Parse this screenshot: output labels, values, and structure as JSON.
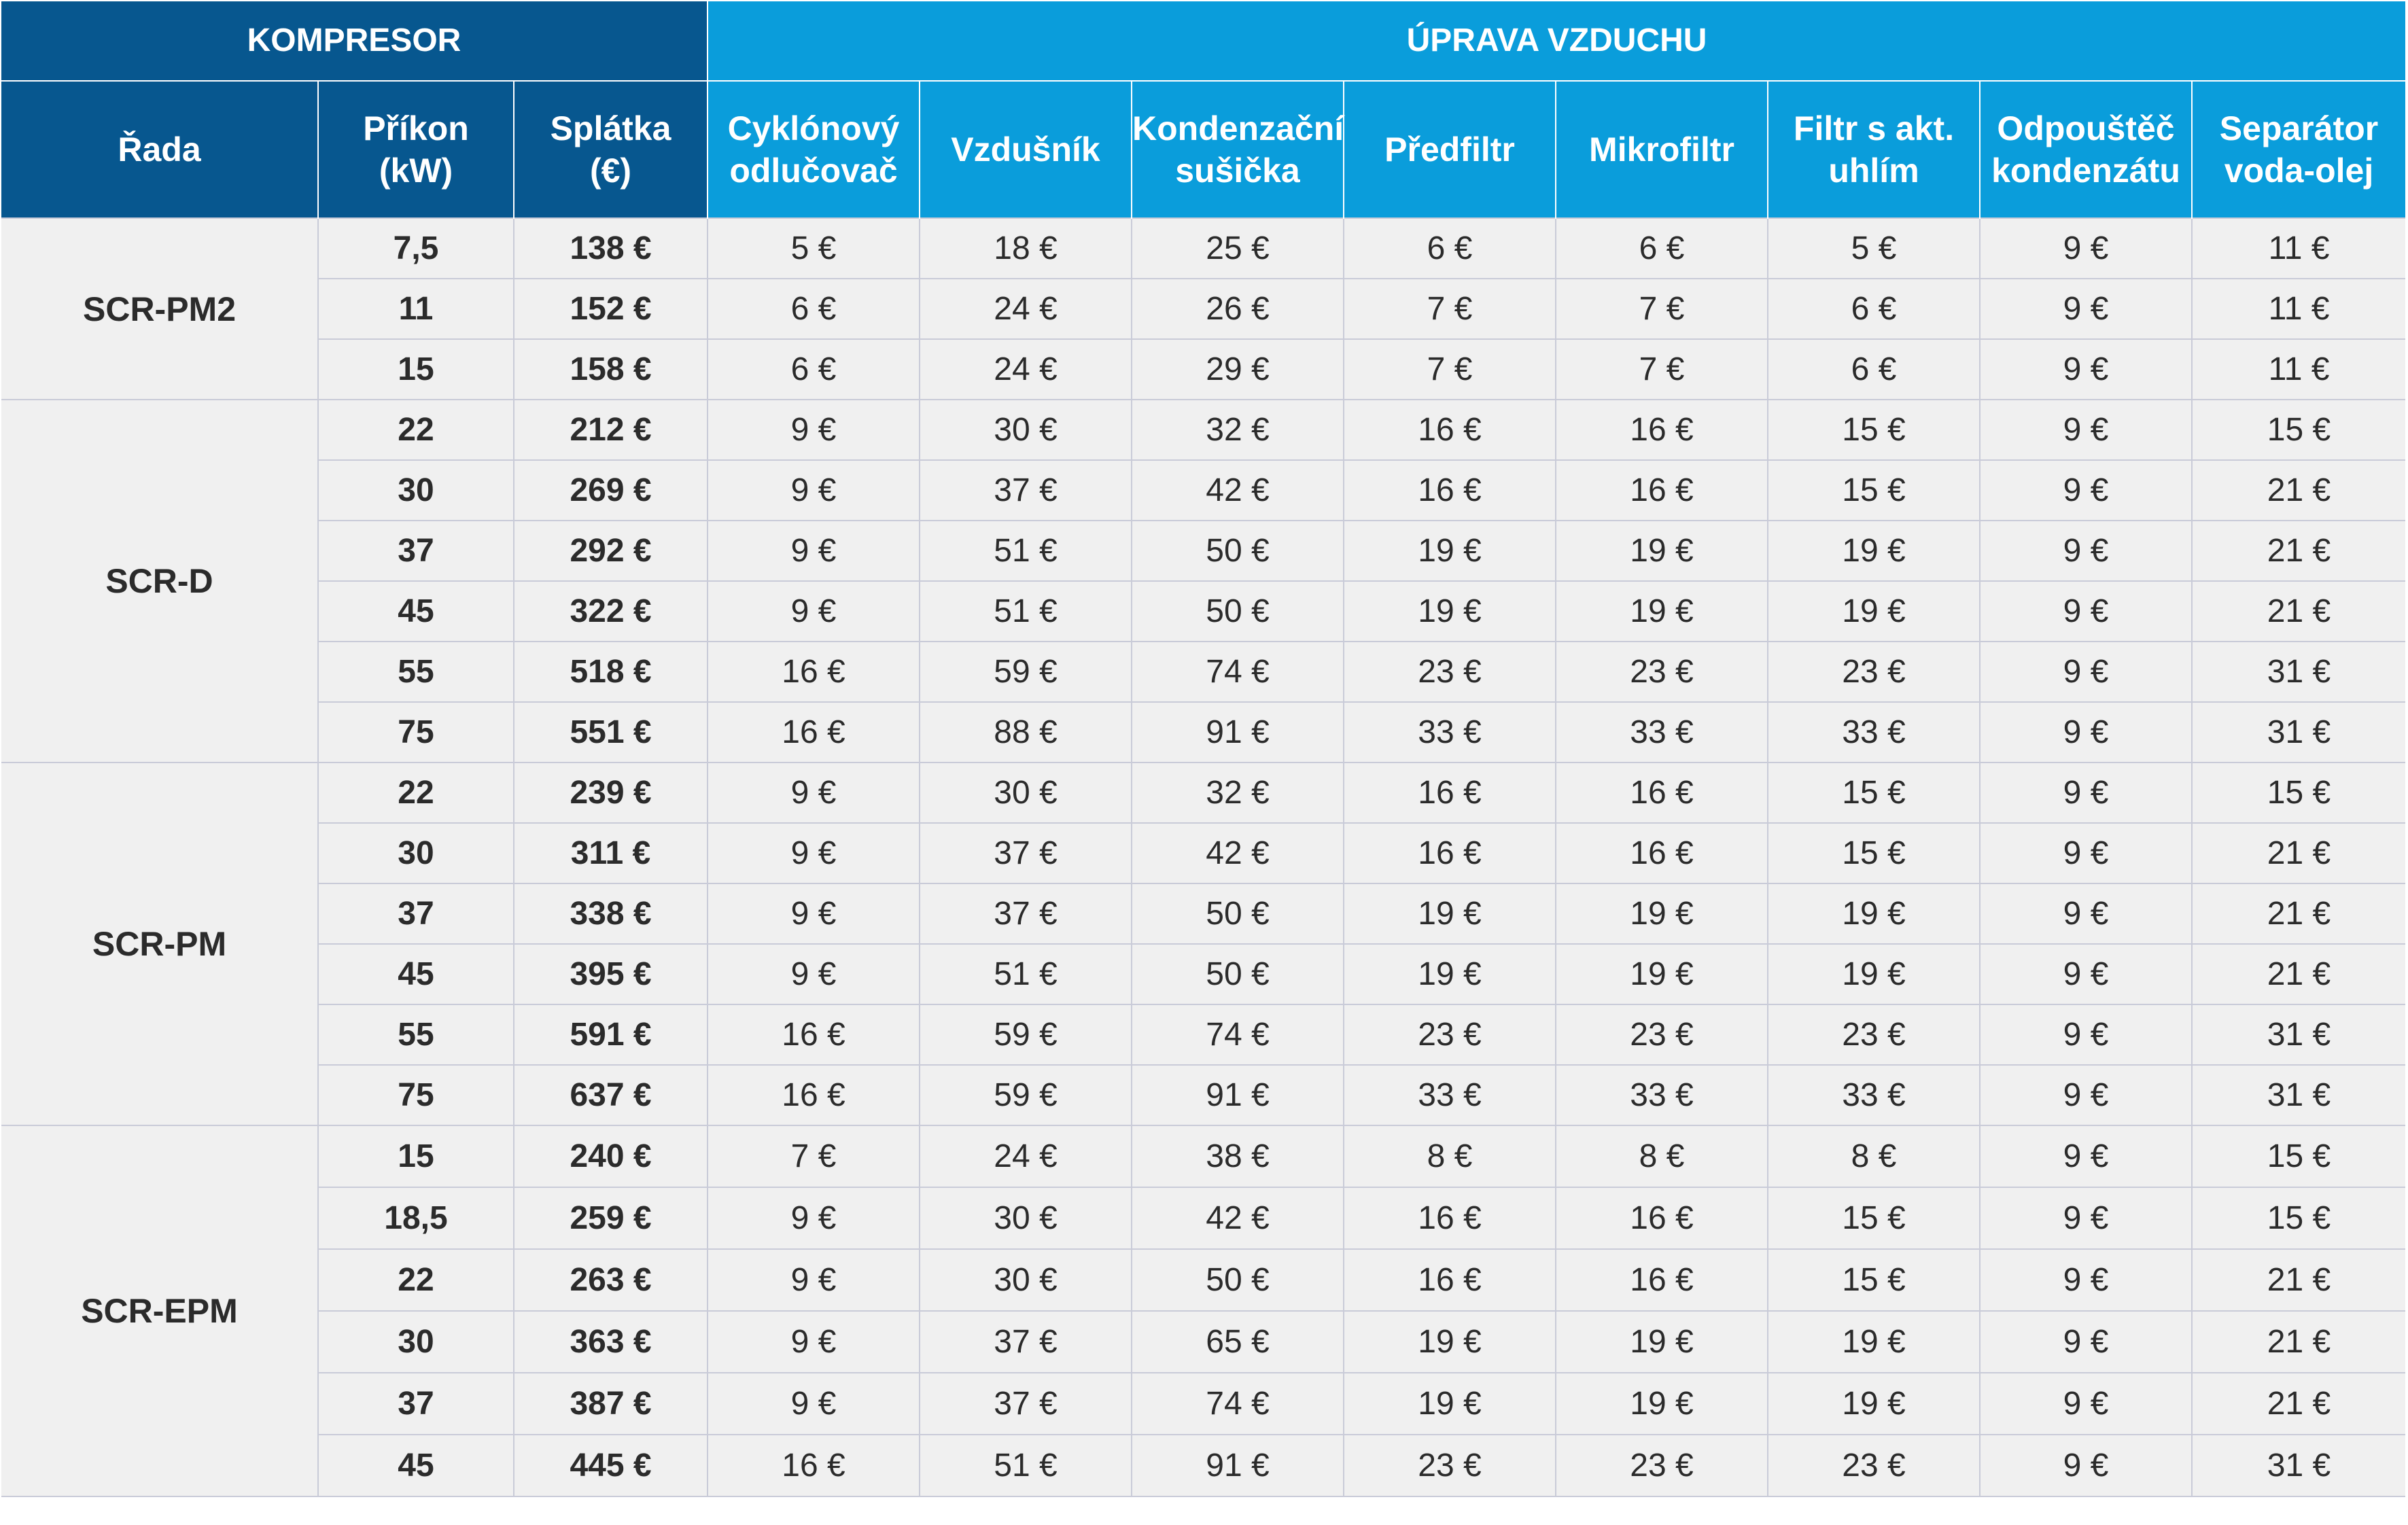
{
  "header": {
    "group_compressor": "KOMPRESOR",
    "group_air": "ÚPRAVA VZDUCHU",
    "columns": [
      [
        "Řada"
      ],
      [
        "Příkon",
        "(kW)"
      ],
      [
        "Splátka",
        "(€)"
      ],
      [
        "Cyklónový",
        "odlučovač"
      ],
      [
        "Vzdušník"
      ],
      [
        "Kondenzační",
        "sušička"
      ],
      [
        "Předfiltr"
      ],
      [
        "Mikrofiltr"
      ],
      [
        "Filtr s akt.",
        "uhlím"
      ],
      [
        "Odpouštěč",
        "kondenzátu"
      ],
      [
        "Separátor",
        "voda-olej"
      ]
    ]
  },
  "groups": [
    {
      "series": "SCR-PM2",
      "rows": [
        [
          "7,5",
          "138 €",
          "5 €",
          "18 €",
          "25 €",
          "6 €",
          "6 €",
          "5 €",
          "9 €",
          "11 €"
        ],
        [
          "11",
          "152 €",
          "6 €",
          "24 €",
          "26 €",
          "7 €",
          "7 €",
          "6 €",
          "9 €",
          "11 €"
        ],
        [
          "15",
          "158 €",
          "6 €",
          "24 €",
          "29 €",
          "7 €",
          "7 €",
          "6 €",
          "9 €",
          "11 €"
        ]
      ]
    },
    {
      "series": "SCR-D",
      "rows": [
        [
          "22",
          "212 €",
          "9 €",
          "30 €",
          "32 €",
          "16 €",
          "16 €",
          "15 €",
          "9 €",
          "15 €"
        ],
        [
          "30",
          "269 €",
          "9 €",
          "37 €",
          "42 €",
          "16 €",
          "16 €",
          "15 €",
          "9 €",
          "21 €"
        ],
        [
          "37",
          "292 €",
          "9 €",
          "51 €",
          "50 €",
          "19 €",
          "19 €",
          "19 €",
          "9 €",
          "21 €"
        ],
        [
          "45",
          "322 €",
          "9 €",
          "51 €",
          "50 €",
          "19 €",
          "19 €",
          "19 €",
          "9 €",
          "21 €"
        ],
        [
          "55",
          "518 €",
          "16 €",
          "59 €",
          "74 €",
          "23 €",
          "23 €",
          "23 €",
          "9 €",
          "31 €"
        ],
        [
          "75",
          "551 €",
          "16 €",
          "88 €",
          "91 €",
          "33 €",
          "33 €",
          "33 €",
          "9 €",
          "31 €"
        ]
      ]
    },
    {
      "series": "SCR-PM",
      "rows": [
        [
          "22",
          "239 €",
          "9 €",
          "30 €",
          "32 €",
          "16 €",
          "16 €",
          "15 €",
          "9 €",
          "15 €"
        ],
        [
          "30",
          "311 €",
          "9 €",
          "37 €",
          "42 €",
          "16 €",
          "16 €",
          "15 €",
          "9 €",
          "21 €"
        ],
        [
          "37",
          "338 €",
          "9 €",
          "37 €",
          "50 €",
          "19 €",
          "19 €",
          "19 €",
          "9 €",
          "21 €"
        ],
        [
          "45",
          "395 €",
          "9 €",
          "51 €",
          "50 €",
          "19 €",
          "19 €",
          "19 €",
          "9 €",
          "21 €"
        ],
        [
          "55",
          "591 €",
          "16 €",
          "59 €",
          "74 €",
          "23 €",
          "23 €",
          "23 €",
          "9 €",
          "31 €"
        ],
        [
          "75",
          "637 €",
          "16 €",
          "59 €",
          "91 €",
          "33 €",
          "33 €",
          "33 €",
          "9 €",
          "31 €"
        ]
      ]
    },
    {
      "series": "SCR-EPM",
      "rows": [
        [
          "15",
          "240 €",
          "7 €",
          "24 €",
          "38 €",
          "8 €",
          "8 €",
          "8 €",
          "9 €",
          "15 €"
        ],
        [
          "18,5",
          "259 €",
          "9 €",
          "30 €",
          "42 €",
          "16 €",
          "16 €",
          "15 €",
          "9 €",
          "15 €"
        ],
        [
          "22",
          "263 €",
          "9 €",
          "30 €",
          "50 €",
          "16 €",
          "16 €",
          "15 €",
          "9 €",
          "21 €"
        ],
        [
          "30",
          "363 €",
          "9 €",
          "37 €",
          "65 €",
          "19 €",
          "19 €",
          "19 €",
          "9 €",
          "21 €"
        ],
        [
          "37",
          "387 €",
          "9 €",
          "37 €",
          "74 €",
          "19 €",
          "19 €",
          "19 €",
          "9 €",
          "21 €"
        ],
        [
          "45",
          "445 €",
          "16 €",
          "51 €",
          "91 €",
          "23 €",
          "23 €",
          "23 €",
          "9 €",
          "31 €"
        ]
      ]
    }
  ]
}
